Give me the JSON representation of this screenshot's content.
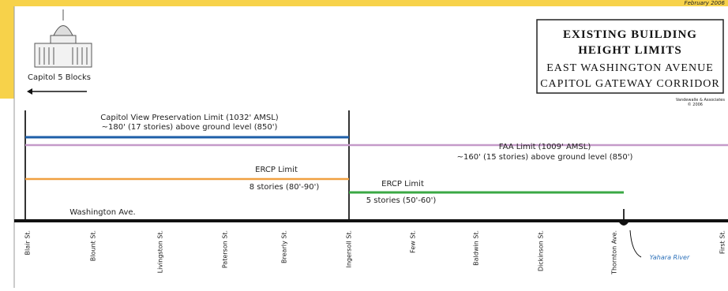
{
  "header": {
    "date": "February 2006",
    "title": [
      "EXISTING BUILDING",
      "HEIGHT LIMITS"
    ],
    "subtitle": [
      "EAST WASHINGTON AVENUE",
      "CAPITOL GATEWAY CORRIDOR"
    ],
    "credit": [
      "Vandewalle & Associates",
      "© 2006"
    ]
  },
  "capitol": {
    "label": "Capitol 5 Blocks"
  },
  "limits": [
    {
      "lines": [
        "Capitol View Preservation Limit (1032' AMSL)",
        "~180' (17 stories) above ground level (850')"
      ]
    },
    {
      "lines": [
        "FAA Limit (1009' AMSL)",
        "~160' (15 stories) above ground level (850')"
      ]
    },
    {
      "lines": [
        "ERCP Limit",
        "8 stories (80'-90')"
      ]
    },
    {
      "lines": [
        "ERCP Limit",
        "5 stories (50'-60')"
      ]
    }
  ],
  "road": "Washington Ave.",
  "river": "Yahara River",
  "streets": [
    "Blair St.",
    "Blount St.",
    "Livingston St.",
    "Paterson St.",
    "Brearly St.",
    "Ingersoll St.",
    "Few St.",
    "Baldwin St.",
    "Dickinson St.",
    "Thornton Ave.",
    "First St."
  ]
}
